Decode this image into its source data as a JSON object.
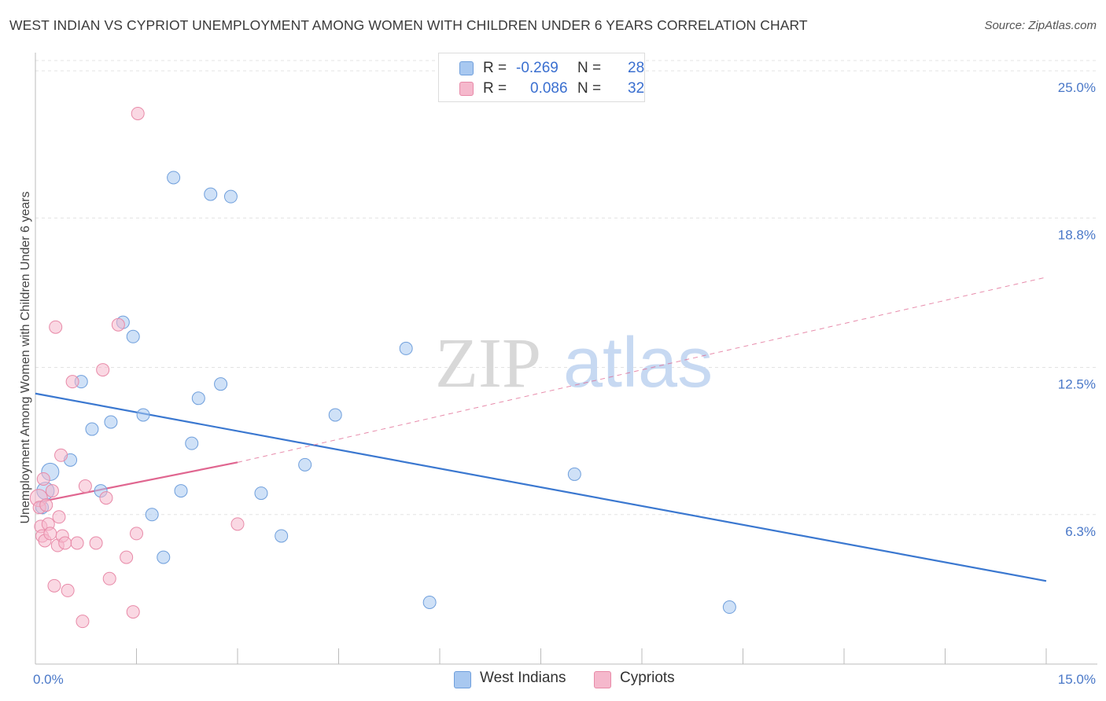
{
  "title": "WEST INDIAN VS CYPRIOT UNEMPLOYMENT AMONG WOMEN WITH CHILDREN UNDER 6 YEARS CORRELATION CHART",
  "source": "Source: ZipAtlas.com",
  "watermark": {
    "zip": "ZIP",
    "atlas": "atlas"
  },
  "legend": {
    "rows": [
      {
        "r_label": "R =",
        "r_value": "-0.269",
        "n_label": "N =",
        "n_value": "28",
        "color": "#a8c8f0"
      },
      {
        "r_label": "R =",
        "r_value": "0.086",
        "n_label": "N =",
        "n_value": "32",
        "color": "#f5b8cc"
      }
    ]
  },
  "series_legend": [
    {
      "name": "West Indians",
      "color": "#a8c8f0"
    },
    {
      "name": "Cypriots",
      "color": "#f5b8cc"
    }
  ],
  "chart_data": {
    "type": "scatter",
    "title": "WEST INDIAN VS CYPRIOT UNEMPLOYMENT AMONG WOMEN WITH CHILDREN UNDER 6 YEARS CORRELATION CHART",
    "xlabel": "",
    "ylabel": "Unemployment Among Women with Children Under 6 years",
    "xlim": [
      0,
      15
    ],
    "ylim": [
      0,
      25.5
    ],
    "x_tick_labels": [
      {
        "value": 0,
        "label": "0.0%"
      },
      {
        "value": 15,
        "label": "15.0%"
      }
    ],
    "y_tick_labels": [
      {
        "value": 6.3,
        "label": "6.3%"
      },
      {
        "value": 12.5,
        "label": "12.5%"
      },
      {
        "value": 18.8,
        "label": "18.8%"
      },
      {
        "value": 25.0,
        "label": "25.0%"
      }
    ],
    "grid": true,
    "series": [
      {
        "name": "West Indians",
        "color": "#a8c8f0",
        "stroke": "#6f9fdc",
        "line_color": "#3b78d0",
        "trend": {
          "x": [
            0,
            15
          ],
          "y": [
            11.4,
            3.5
          ],
          "dashed_extension": false
        },
        "points": [
          {
            "x": 0.15,
            "y": 7.3,
            "big": true
          },
          {
            "x": 0.22,
            "y": 8.1,
            "big": true
          },
          {
            "x": 0.52,
            "y": 8.6
          },
          {
            "x": 0.68,
            "y": 11.9
          },
          {
            "x": 0.84,
            "y": 9.9
          },
          {
            "x": 0.97,
            "y": 7.3
          },
          {
            "x": 1.12,
            "y": 10.2
          },
          {
            "x": 1.3,
            "y": 14.4
          },
          {
            "x": 1.45,
            "y": 13.8
          },
          {
            "x": 1.6,
            "y": 10.5
          },
          {
            "x": 1.73,
            "y": 6.3
          },
          {
            "x": 1.9,
            "y": 4.5
          },
          {
            "x": 2.05,
            "y": 20.5
          },
          {
            "x": 2.16,
            "y": 7.3
          },
          {
            "x": 2.32,
            "y": 9.3
          },
          {
            "x": 2.42,
            "y": 11.2
          },
          {
            "x": 2.6,
            "y": 19.8
          },
          {
            "x": 2.75,
            "y": 11.8
          },
          {
            "x": 2.9,
            "y": 19.7
          },
          {
            "x": 3.35,
            "y": 7.2
          },
          {
            "x": 3.65,
            "y": 5.4
          },
          {
            "x": 4.0,
            "y": 8.4
          },
          {
            "x": 4.45,
            "y": 10.5
          },
          {
            "x": 5.5,
            "y": 13.3
          },
          {
            "x": 5.85,
            "y": 2.6
          },
          {
            "x": 8.0,
            "y": 8.0
          },
          {
            "x": 10.3,
            "y": 2.4
          },
          {
            "x": 0.1,
            "y": 6.6
          }
        ]
      },
      {
        "name": "Cypriots",
        "color": "#f5b8cc",
        "stroke": "#e88aa8",
        "line_color": "#e06690",
        "trend": {
          "x": [
            0,
            3.0
          ],
          "y": [
            6.8,
            8.5
          ],
          "dashed_extension": true,
          "dash_to": {
            "x": 15,
            "y": 16.3
          }
        },
        "points": [
          {
            "x": 0.05,
            "y": 7.0,
            "big": true
          },
          {
            "x": 0.06,
            "y": 6.6
          },
          {
            "x": 0.08,
            "y": 5.8
          },
          {
            "x": 0.1,
            "y": 5.4
          },
          {
            "x": 0.12,
            "y": 7.8
          },
          {
            "x": 0.14,
            "y": 5.2
          },
          {
            "x": 0.16,
            "y": 6.7
          },
          {
            "x": 0.19,
            "y": 5.9
          },
          {
            "x": 0.22,
            "y": 5.5
          },
          {
            "x": 0.25,
            "y": 7.3
          },
          {
            "x": 0.28,
            "y": 3.3
          },
          {
            "x": 0.3,
            "y": 14.2
          },
          {
            "x": 0.33,
            "y": 5.0
          },
          {
            "x": 0.35,
            "y": 6.2
          },
          {
            "x": 0.38,
            "y": 8.8
          },
          {
            "x": 0.4,
            "y": 5.4
          },
          {
            "x": 0.44,
            "y": 5.1
          },
          {
            "x": 0.48,
            "y": 3.1
          },
          {
            "x": 0.55,
            "y": 11.9
          },
          {
            "x": 0.62,
            "y": 5.1
          },
          {
            "x": 0.7,
            "y": 1.8
          },
          {
            "x": 0.74,
            "y": 7.5
          },
          {
            "x": 0.9,
            "y": 5.1
          },
          {
            "x": 1.0,
            "y": 12.4
          },
          {
            "x": 1.05,
            "y": 7.0
          },
          {
            "x": 1.1,
            "y": 3.6
          },
          {
            "x": 1.23,
            "y": 14.3
          },
          {
            "x": 1.35,
            "y": 4.5
          },
          {
            "x": 1.45,
            "y": 2.2
          },
          {
            "x": 1.52,
            "y": 23.2
          },
          {
            "x": 1.5,
            "y": 5.5
          },
          {
            "x": 3.0,
            "y": 5.9
          }
        ]
      }
    ]
  }
}
